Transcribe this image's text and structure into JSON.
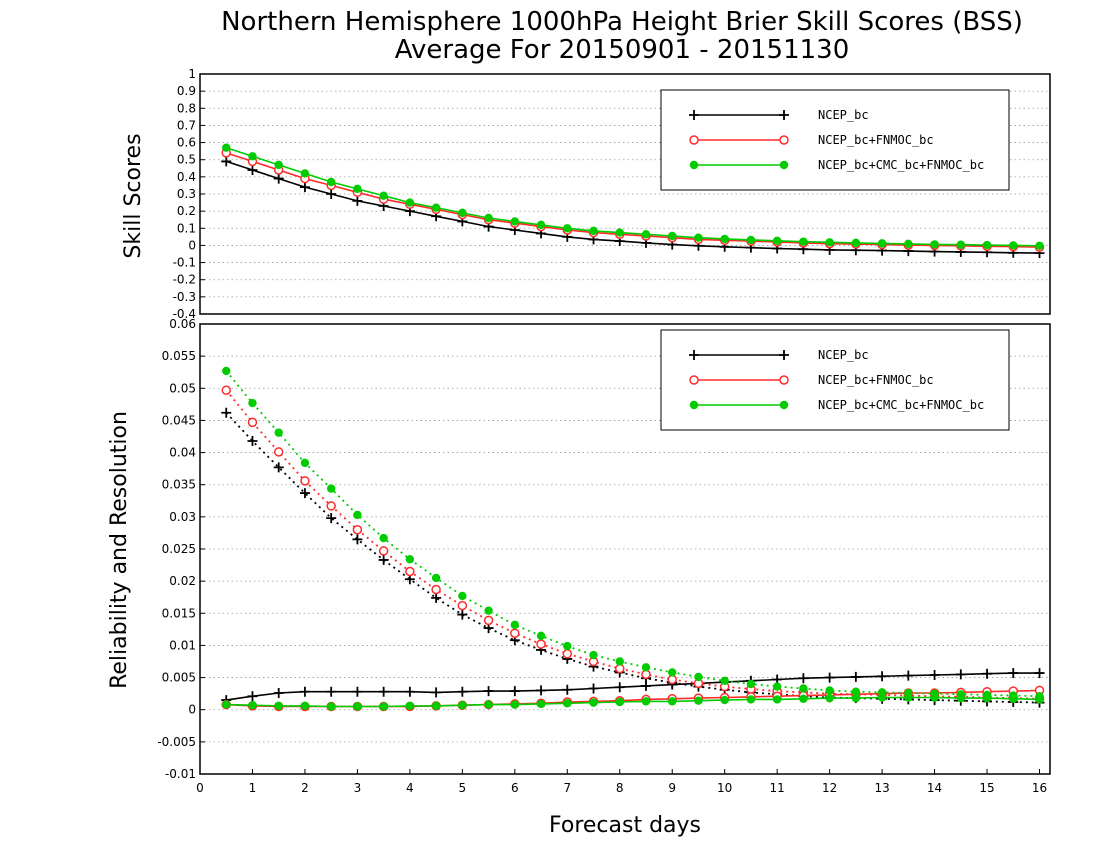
{
  "title_line1": "Northern Hemisphere 1000hPa Height Brier Skill Scores (BSS)",
  "title_line2": "Average For 20150901 - 20151130",
  "colors": {
    "ncep": "#000000",
    "ncep_fnmoc": "#ff2a2a",
    "ncep_cmc_fnmoc": "#00cc00"
  },
  "chart_data": [
    {
      "type": "line",
      "ylabel": "Skill Scores",
      "xlabel": "",
      "xlim": [
        0,
        16.2
      ],
      "ylim": [
        -0.4,
        1
      ],
      "yticks": [
        "-0.4",
        "-0.3",
        "-0.2",
        "-0.1",
        "0",
        "0.1",
        "0.2",
        "0.3",
        "0.4",
        "0.5",
        "0.6",
        "0.7",
        "0.8",
        "0.9",
        "1"
      ],
      "grid": true,
      "legend_position": "top-right",
      "x": [
        0.5,
        1,
        1.5,
        2,
        2.5,
        3,
        3.5,
        4,
        4.5,
        5,
        5.5,
        6,
        6.5,
        7,
        7.5,
        8,
        8.5,
        9,
        9.5,
        10,
        10.5,
        11,
        11.5,
        12,
        12.5,
        13,
        13.5,
        14,
        14.5,
        15,
        15.5,
        16
      ],
      "series": [
        {
          "name": "NCEP_bc",
          "values": [
            0.49,
            0.44,
            0.39,
            0.34,
            0.3,
            0.26,
            0.23,
            0.2,
            0.17,
            0.14,
            0.11,
            0.09,
            0.07,
            0.05,
            0.035,
            0.025,
            0.015,
            0.005,
            -0.002,
            -0.008,
            -0.013,
            -0.018,
            -0.022,
            -0.026,
            -0.028,
            -0.03,
            -0.033,
            -0.036,
            -0.038,
            -0.04,
            -0.043,
            -0.045
          ]
        },
        {
          "name": "NCEP_bc+FNMOC_bc",
          "values": [
            0.54,
            0.49,
            0.44,
            0.39,
            0.35,
            0.31,
            0.27,
            0.24,
            0.21,
            0.18,
            0.15,
            0.13,
            0.11,
            0.09,
            0.075,
            0.065,
            0.055,
            0.045,
            0.035,
            0.03,
            0.025,
            0.02,
            0.015,
            0.01,
            0.008,
            0.005,
            0.002,
            0,
            -0.002,
            -0.005,
            -0.007,
            -0.01
          ]
        },
        {
          "name": "NCEP_bc+CMC_bc+FNMOC_bc",
          "values": [
            0.57,
            0.52,
            0.47,
            0.42,
            0.37,
            0.33,
            0.29,
            0.25,
            0.22,
            0.19,
            0.16,
            0.14,
            0.12,
            0.1,
            0.085,
            0.075,
            0.065,
            0.055,
            0.045,
            0.038,
            0.032,
            0.027,
            0.022,
            0.018,
            0.015,
            0.012,
            0.009,
            0.006,
            0.004,
            0.002,
            0,
            -0.002
          ]
        }
      ]
    },
    {
      "type": "line",
      "ylabel": "Reliability and Resolution",
      "xlabel": "Forecast days",
      "xlim": [
        0,
        16.2
      ],
      "ylim": [
        -0.01,
        0.06
      ],
      "yticks": [
        "-0.01",
        "-0.005",
        "0",
        "0.005",
        "0.01",
        "0.015",
        "0.02",
        "0.025",
        "0.03",
        "0.035",
        "0.04",
        "0.045",
        "0.05",
        "0.055",
        "0.06"
      ],
      "xticks": [
        "0",
        "1",
        "2",
        "3",
        "4",
        "5",
        "6",
        "7",
        "8",
        "9",
        "10",
        "11",
        "12",
        "13",
        "14",
        "15",
        "16"
      ],
      "grid": true,
      "legend_position": "top-right",
      "x": [
        0.5,
        1,
        1.5,
        2,
        2.5,
        3,
        3.5,
        4,
        4.5,
        5,
        5.5,
        6,
        6.5,
        7,
        7.5,
        8,
        8.5,
        9,
        9.5,
        10,
        10.5,
        11,
        11.5,
        12,
        12.5,
        13,
        13.5,
        14,
        14.5,
        15,
        15.5,
        16
      ],
      "series": [
        {
          "name": "NCEP_bc",
          "kind": "resolution",
          "values": [
            0.0462,
            0.0418,
            0.0377,
            0.0337,
            0.0298,
            0.0265,
            0.0233,
            0.0203,
            0.0174,
            0.0148,
            0.0127,
            0.0108,
            0.0093,
            0.0079,
            0.0067,
            0.0058,
            0.0049,
            0.0042,
            0.0036,
            0.0031,
            0.0027,
            0.0024,
            0.0021,
            0.0019,
            0.0018,
            0.0017,
            0.0016,
            0.0015,
            0.0014,
            0.0013,
            0.0012,
            0.0011
          ]
        },
        {
          "name": "NCEP_bc",
          "kind": "reliability",
          "values": [
            0.0015,
            0.0021,
            0.0026,
            0.0028,
            0.0028,
            0.0028,
            0.0028,
            0.0028,
            0.0027,
            0.0028,
            0.0029,
            0.0029,
            0.003,
            0.0031,
            0.0033,
            0.0035,
            0.0037,
            0.0039,
            0.0041,
            0.0043,
            0.0045,
            0.0047,
            0.0049,
            0.005,
            0.0051,
            0.0052,
            0.0053,
            0.0054,
            0.0055,
            0.0056,
            0.0057,
            0.0057
          ]
        },
        {
          "name": "NCEP_bc+FNMOC_bc",
          "kind": "resolution",
          "values": [
            0.0497,
            0.0447,
            0.0401,
            0.0356,
            0.0317,
            0.028,
            0.0247,
            0.0215,
            0.0187,
            0.0162,
            0.0139,
            0.0119,
            0.0102,
            0.0087,
            0.0075,
            0.0064,
            0.0055,
            0.0047,
            0.0041,
            0.0036,
            0.0032,
            0.0029,
            0.0027,
            0.0025,
            0.0024,
            0.0023,
            0.0022,
            0.0021,
            0.002,
            0.0019,
            0.0018,
            0.0017
          ]
        },
        {
          "name": "NCEP_bc+FNMOC_bc",
          "kind": "reliability",
          "values": [
            0.0008,
            0.0006,
            0.0005,
            0.0005,
            0.0005,
            0.0005,
            0.0005,
            0.0005,
            0.0006,
            0.0007,
            0.0008,
            0.0009,
            0.001,
            0.0012,
            0.0013,
            0.0014,
            0.0016,
            0.0017,
            0.0018,
            0.0019,
            0.002,
            0.0021,
            0.0022,
            0.0023,
            0.0024,
            0.0025,
            0.0026,
            0.0026,
            0.0027,
            0.0028,
            0.0029,
            0.003
          ]
        },
        {
          "name": "NCEP_bc+CMC_bc+FNMOC_bc",
          "kind": "resolution",
          "values": [
            0.0527,
            0.0477,
            0.0431,
            0.0384,
            0.0344,
            0.0303,
            0.0267,
            0.0234,
            0.0205,
            0.0177,
            0.0154,
            0.0132,
            0.0115,
            0.0099,
            0.0085,
            0.0075,
            0.0066,
            0.0058,
            0.0051,
            0.0045,
            0.004,
            0.0036,
            0.0033,
            0.003,
            0.0028,
            0.0027,
            0.0026,
            0.0025,
            0.0024,
            0.0023,
            0.0022,
            0.0021
          ]
        },
        {
          "name": "NCEP_bc+CMC_bc+FNMOC_bc",
          "kind": "reliability",
          "values": [
            0.0008,
            0.0007,
            0.0006,
            0.0006,
            0.0005,
            0.0005,
            0.0005,
            0.0006,
            0.0006,
            0.0007,
            0.0008,
            0.0008,
            0.0009,
            0.001,
            0.0011,
            0.0012,
            0.0013,
            0.0013,
            0.0014,
            0.0015,
            0.0016,
            0.0016,
            0.0017,
            0.0018,
            0.0018,
            0.0019,
            0.0019,
            0.0019,
            0.0018,
            0.0018,
            0.0017,
            0.0016
          ]
        }
      ]
    }
  ]
}
